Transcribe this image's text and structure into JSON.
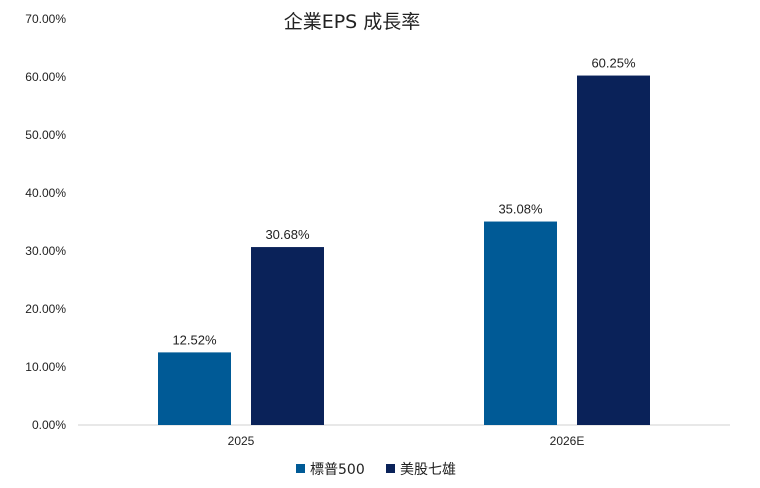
{
  "chart_data": {
    "type": "bar",
    "title": "企業EPS 成長率",
    "categories": [
      "2025",
      "2026E"
    ],
    "series": [
      {
        "name": "標普500",
        "values": [
          12.52,
          35.08
        ],
        "labels": [
          "12.52%",
          "35.08%"
        ],
        "color": "#005a96"
      },
      {
        "name": "美股七雄",
        "values": [
          30.68,
          60.25
        ],
        "labels": [
          "30.68%",
          "60.25%"
        ],
        "color": "#0a2259"
      }
    ],
    "ylim": [
      0,
      70
    ],
    "yticks": [
      "0.00%",
      "10.00%",
      "20.00%",
      "30.00%",
      "40.00%",
      "50.00%",
      "60.00%",
      "70.00%"
    ],
    "grid": false,
    "legend_position": "bottom"
  }
}
